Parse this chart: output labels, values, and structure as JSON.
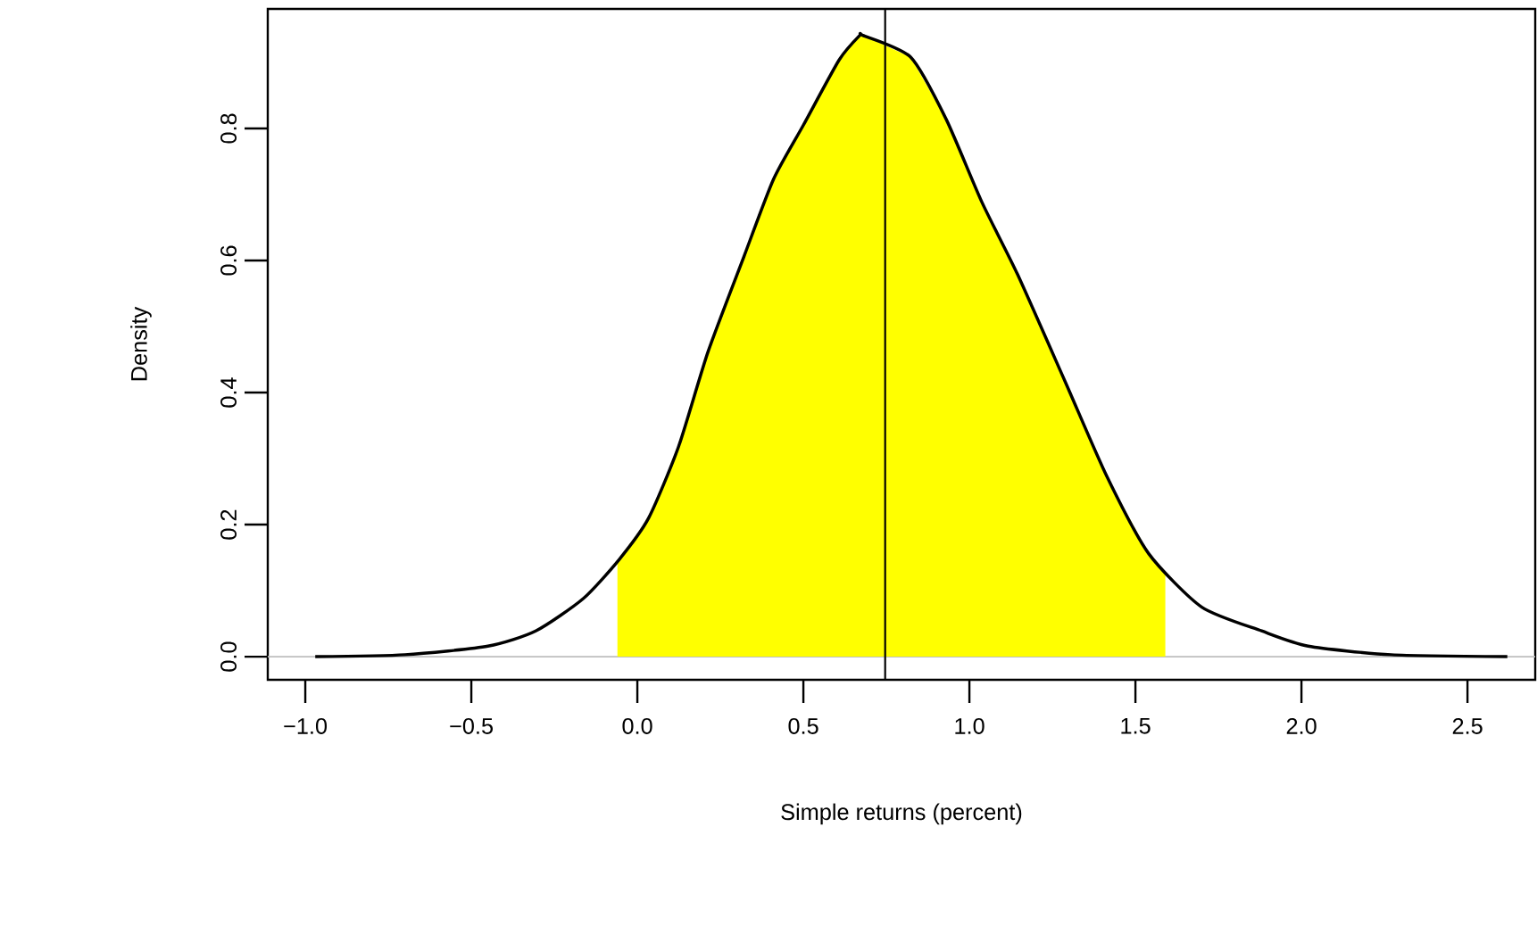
{
  "chart_data": {
    "type": "line",
    "xlabel": "Simple returns (percent)",
    "ylabel": "Density",
    "xlim": [
      -1.113,
      2.704
    ],
    "ylim": [
      -0.035,
      0.981
    ],
    "xticks": [
      {
        "value": -1.0,
        "label": "−1.0"
      },
      {
        "value": -0.5,
        "label": "−0.5"
      },
      {
        "value": 0.0,
        "label": "0.0"
      },
      {
        "value": 0.5,
        "label": "0.5"
      },
      {
        "value": 1.0,
        "label": "1.0"
      },
      {
        "value": 1.5,
        "label": "1.5"
      },
      {
        "value": 2.0,
        "label": "2.0"
      },
      {
        "value": 2.5,
        "label": "2.5"
      }
    ],
    "yticks": [
      {
        "value": 0.0,
        "label": "0.0"
      },
      {
        "value": 0.2,
        "label": "0.2"
      },
      {
        "value": 0.4,
        "label": "0.4"
      },
      {
        "value": 0.6,
        "label": "0.6"
      },
      {
        "value": 0.8,
        "label": "0.8"
      }
    ],
    "series": [
      {
        "type": "area",
        "color": "#ffff00",
        "x": [
          -0.06,
          0.034,
          0.124,
          0.213,
          0.321,
          0.41,
          0.5,
          0.608,
          0.67,
          0.679,
          0.823,
          0.93,
          1.038,
          1.145,
          1.288,
          1.414,
          1.54,
          1.59
        ],
        "values": [
          0.145,
          0.21,
          0.318,
          0.462,
          0.606,
          0.723,
          0.805,
          0.904,
          0.941,
          0.941,
          0.908,
          0.814,
          0.688,
          0.579,
          0.417,
          0.273,
          0.156,
          0.125
        ]
      },
      {
        "color": "#000000",
        "x": [
          -0.97,
          -0.7,
          -0.45,
          -0.306,
          -0.163,
          -0.055,
          0.034,
          0.124,
          0.213,
          0.321,
          0.41,
          0.5,
          0.608,
          0.67,
          0.679,
          0.823,
          0.93,
          1.038,
          1.145,
          1.288,
          1.414,
          1.54,
          1.7,
          1.88,
          2.02,
          2.27,
          2.62
        ],
        "values": [
          0.0,
          0.003,
          0.016,
          0.039,
          0.088,
          0.147,
          0.21,
          0.318,
          0.462,
          0.606,
          0.723,
          0.805,
          0.904,
          0.941,
          0.941,
          0.908,
          0.814,
          0.688,
          0.579,
          0.417,
          0.273,
          0.156,
          0.075,
          0.039,
          0.016,
          0.003,
          0.0
        ]
      }
    ],
    "ref_lines": [
      {
        "axis": "y",
        "value": 0,
        "color": "#bebebe"
      },
      {
        "axis": "x",
        "value": 0.746,
        "color": "#000000"
      }
    ]
  }
}
